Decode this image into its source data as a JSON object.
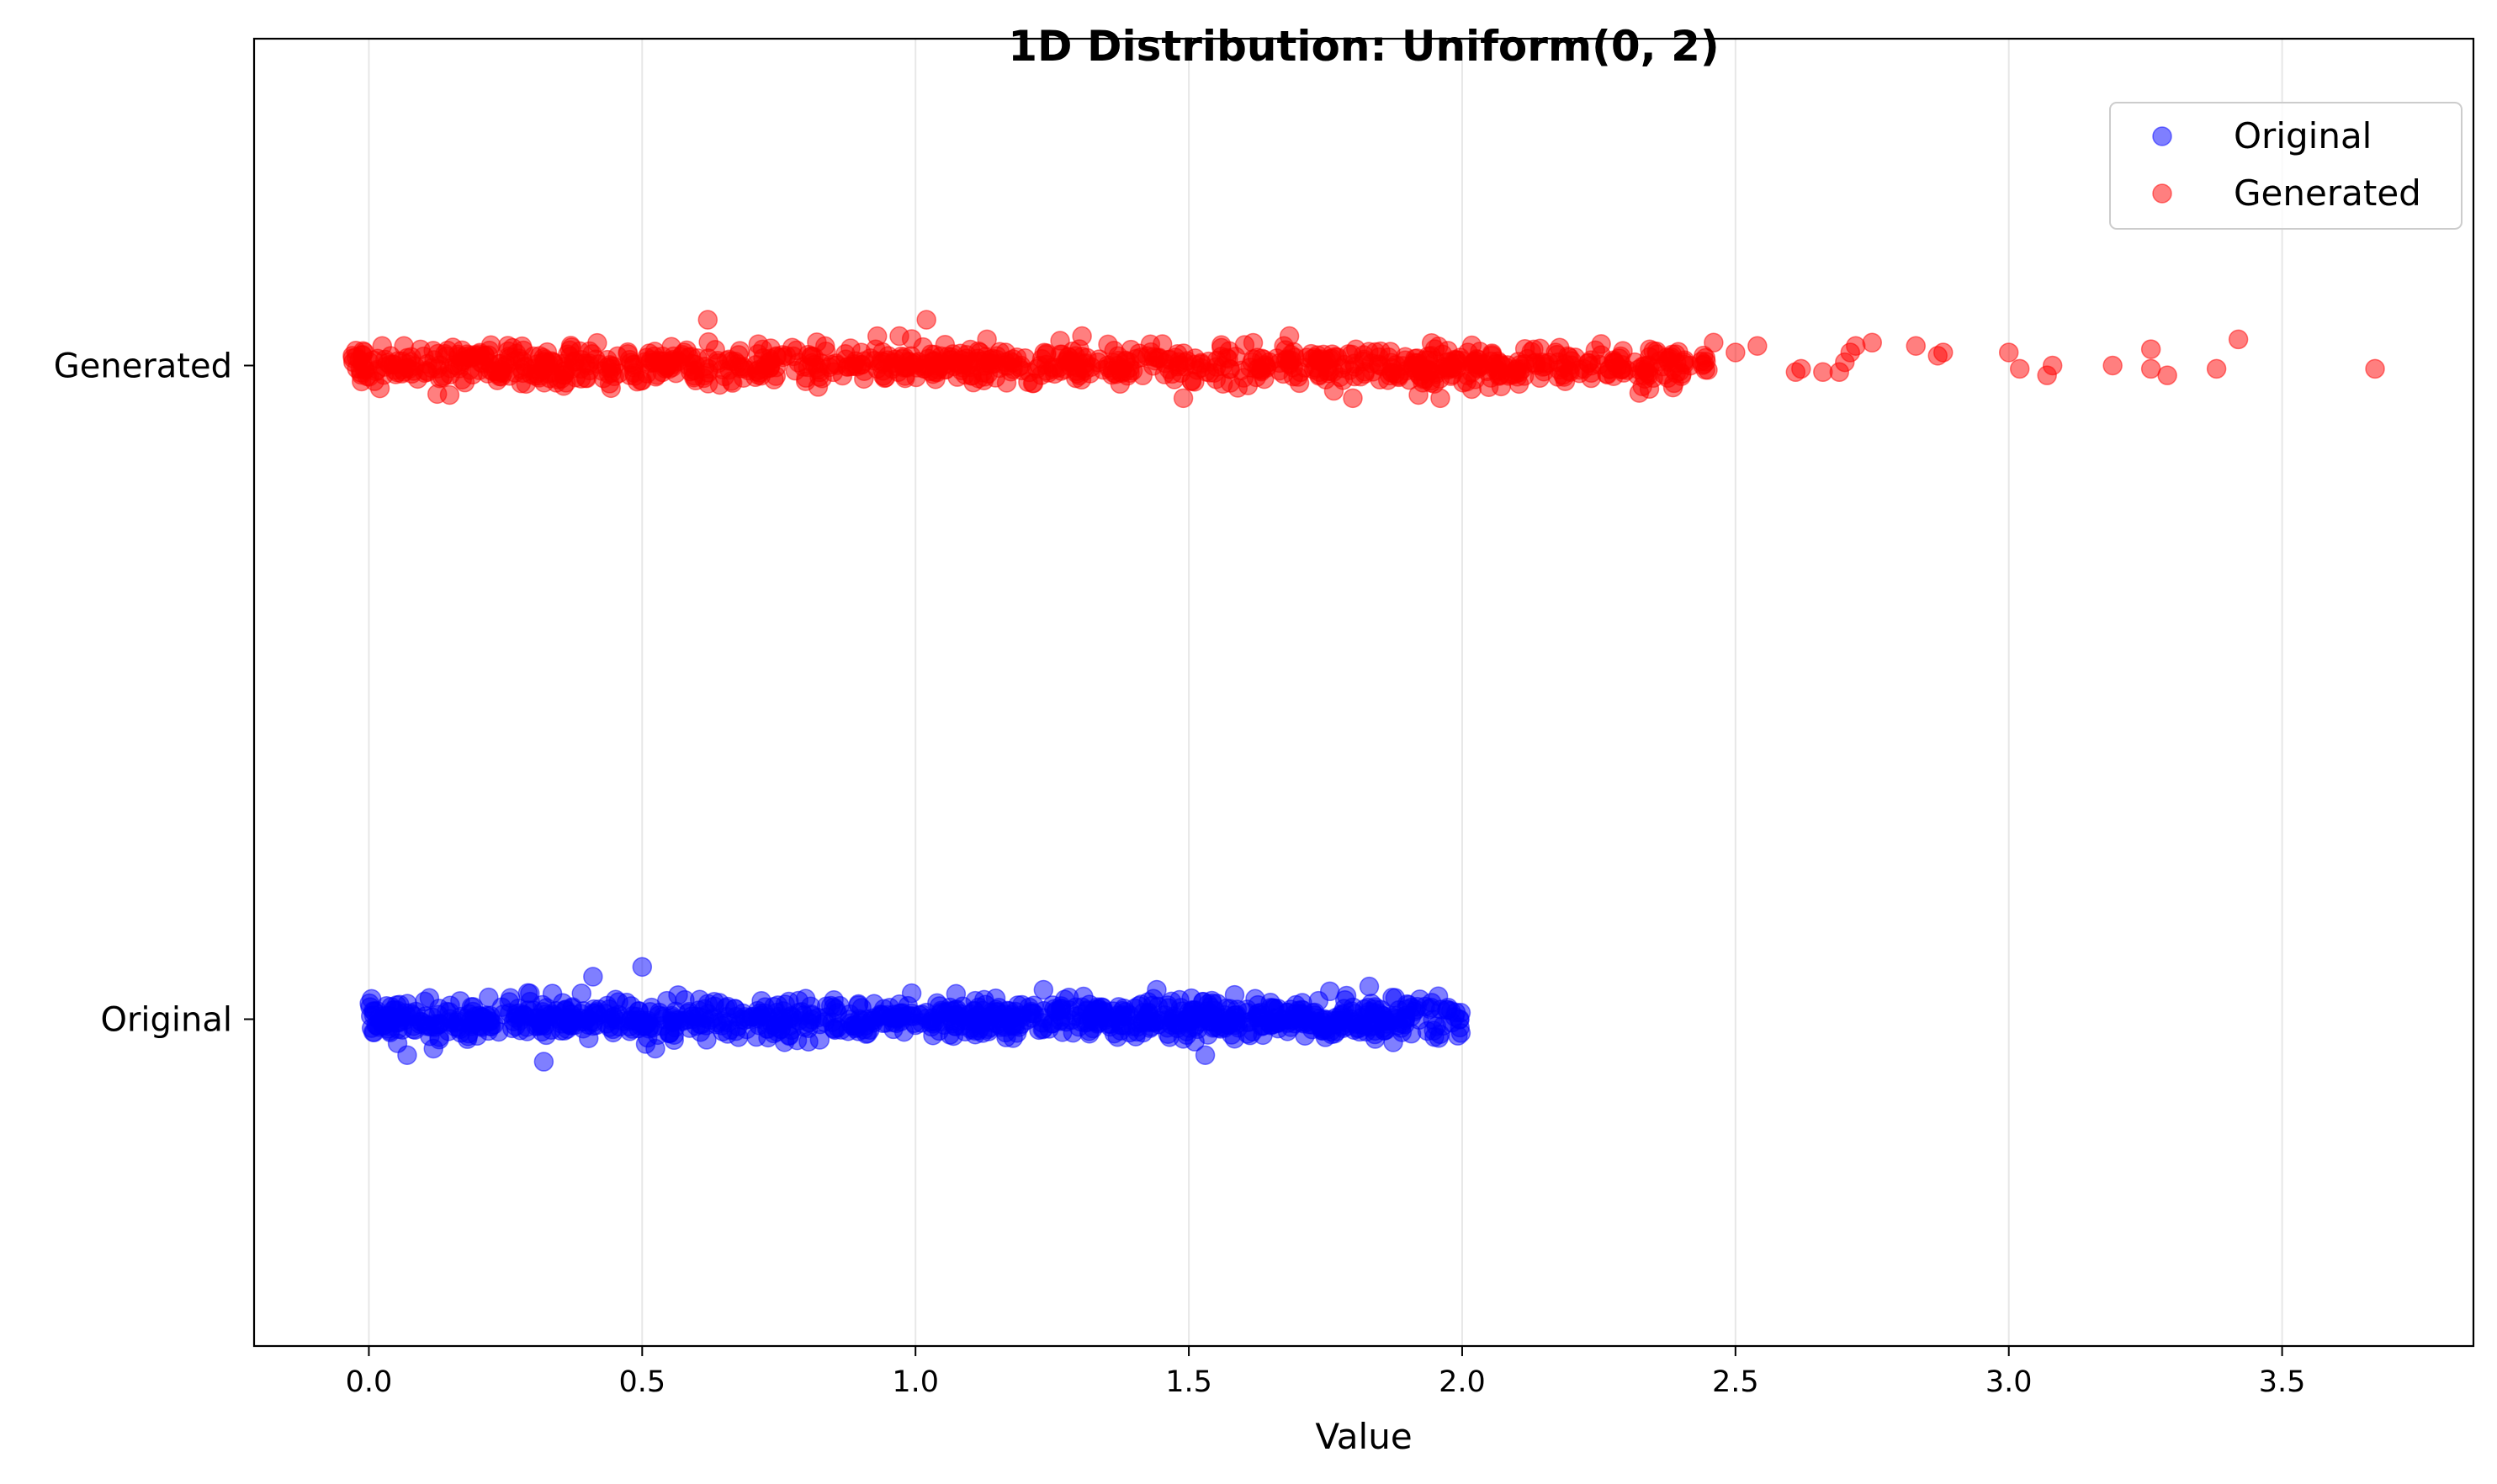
{
  "chart_data": {
    "type": "scatter",
    "title": "1D Distribution: Uniform(0, 2)",
    "xlabel": "Value",
    "ylabel": "",
    "xlim": [
      -0.21,
      3.85
    ],
    "xticks": [
      0.0,
      0.5,
      1.0,
      1.5,
      2.0,
      2.5,
      3.0,
      3.5
    ],
    "xtick_labels": [
      "0.0",
      "0.5",
      "1.0",
      "1.5",
      "2.0",
      "2.5",
      "3.0",
      "3.5"
    ],
    "y_categories": [
      "Original",
      "Generated"
    ],
    "ylim": [
      -0.5,
      1.5
    ],
    "grid": "x-axis vertical gridlines",
    "legend_position": "top-right",
    "marker_alpha": 0.5,
    "series": [
      {
        "name": "Original",
        "category": "Original",
        "color": "#0000ff",
        "x_range": [
          0.0,
          2.0
        ],
        "distribution": "uniform",
        "count": 1000,
        "jitter": 0.03,
        "outliers": [
          {
            "x": 0.5,
            "y": 0.08
          },
          {
            "x": 0.32,
            "y": -0.065
          },
          {
            "x": 0.41,
            "y": 0.065
          },
          {
            "x": 1.53,
            "y": -0.055
          },
          {
            "x": 0.07,
            "y": -0.055
          },
          {
            "x": 1.83,
            "y": 0.05
          }
        ]
      },
      {
        "name": "Generated",
        "category": "Generated",
        "color": "#ff0000",
        "x_range": [
          -0.03,
          2.45
        ],
        "distribution": "uniform",
        "count": 1000,
        "jitter": 0.03,
        "tail_points": [
          {
            "x": 2.46,
            "y": 1.035
          },
          {
            "x": 2.5,
            "y": 1.02
          },
          {
            "x": 2.54,
            "y": 1.03
          },
          {
            "x": 2.61,
            "y": 0.99
          },
          {
            "x": 2.62,
            "y": 0.995
          },
          {
            "x": 2.66,
            "y": 0.99
          },
          {
            "x": 2.69,
            "y": 0.99
          },
          {
            "x": 2.7,
            "y": 1.005
          },
          {
            "x": 2.71,
            "y": 1.02
          },
          {
            "x": 2.72,
            "y": 1.03
          },
          {
            "x": 2.75,
            "y": 1.035
          },
          {
            "x": 2.83,
            "y": 1.03
          },
          {
            "x": 2.87,
            "y": 1.015
          },
          {
            "x": 2.88,
            "y": 1.02
          },
          {
            "x": 3.0,
            "y": 1.02
          },
          {
            "x": 3.02,
            "y": 0.995
          },
          {
            "x": 3.07,
            "y": 0.985
          },
          {
            "x": 3.08,
            "y": 1.0
          },
          {
            "x": 3.19,
            "y": 1.0
          },
          {
            "x": 3.26,
            "y": 1.025
          },
          {
            "x": 3.26,
            "y": 0.995
          },
          {
            "x": 3.29,
            "y": 0.985
          },
          {
            "x": 3.38,
            "y": 0.995
          },
          {
            "x": 3.42,
            "y": 1.04
          },
          {
            "x": 3.67,
            "y": 0.995
          }
        ],
        "outliers": [
          {
            "x": 0.62,
            "y": 1.07
          },
          {
            "x": 1.02,
            "y": 1.07
          },
          {
            "x": -0.03,
            "y": 1.015
          },
          {
            "x": 1.49,
            "y": 0.95
          },
          {
            "x": 1.96,
            "y": 0.95
          },
          {
            "x": 1.8,
            "y": 0.95
          }
        ]
      }
    ]
  }
}
